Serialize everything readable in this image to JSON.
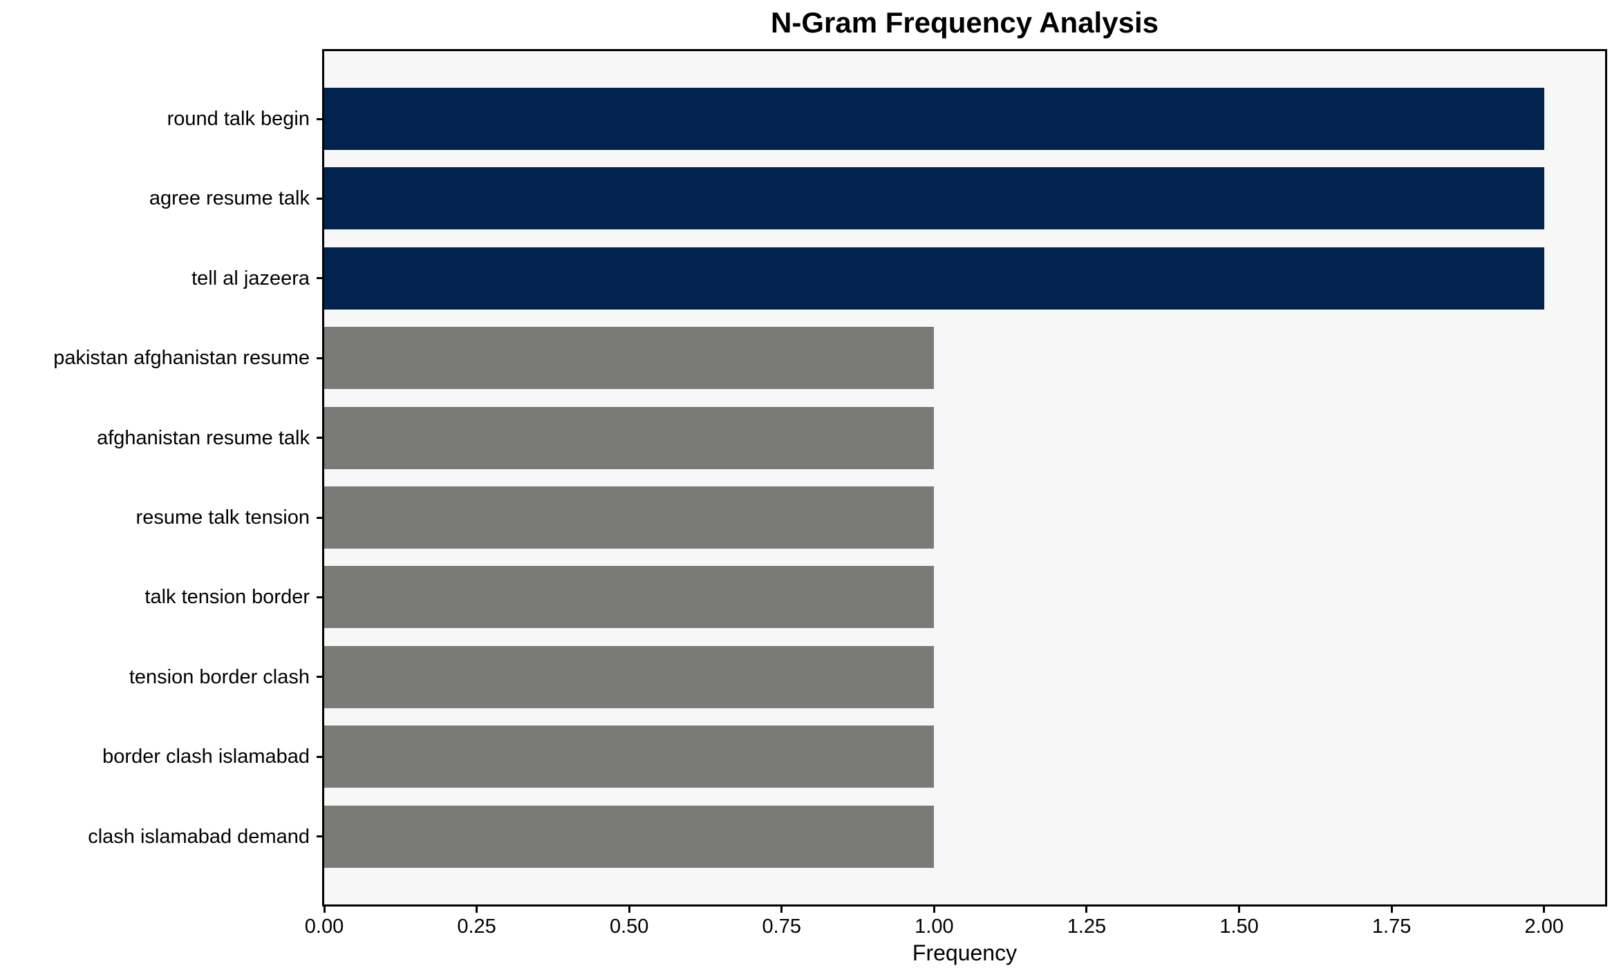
{
  "chart_data": {
    "type": "bar",
    "orientation": "horizontal",
    "title": "N-Gram Frequency Analysis",
    "xlabel": "Frequency",
    "ylabel": "",
    "categories": [
      "round talk begin",
      "agree resume talk",
      "tell al jazeera",
      "pakistan afghanistan resume",
      "afghanistan resume talk",
      "resume talk tension",
      "talk tension border",
      "tension border clash",
      "border clash islamabad",
      "clash islamabad demand"
    ],
    "values": [
      2,
      2,
      2,
      1,
      1,
      1,
      1,
      1,
      1,
      1
    ],
    "bar_colors": [
      "#02234e",
      "#02234e",
      "#02234e",
      "#7a7a77",
      "#7a7a77",
      "#7a7a77",
      "#7a7a77",
      "#7a7a77",
      "#7a7a77",
      "#7a7a77"
    ],
    "colors": {
      "top_ngram": "#02234e",
      "other_ngram": "#7a7a77",
      "plot_background": "#f7f7f7",
      "axis": "#000000"
    },
    "xlim": [
      0,
      2.1
    ],
    "xticks": [
      {
        "value": 0.0,
        "label": "0.00"
      },
      {
        "value": 0.25,
        "label": "0.25"
      },
      {
        "value": 0.5,
        "label": "0.50"
      },
      {
        "value": 0.75,
        "label": "0.75"
      },
      {
        "value": 1.0,
        "label": "1.00"
      },
      {
        "value": 1.25,
        "label": "1.25"
      },
      {
        "value": 1.5,
        "label": "1.50"
      },
      {
        "value": 1.75,
        "label": "1.75"
      },
      {
        "value": 2.0,
        "label": "2.00"
      }
    ],
    "grid": false,
    "legend": "none"
  }
}
